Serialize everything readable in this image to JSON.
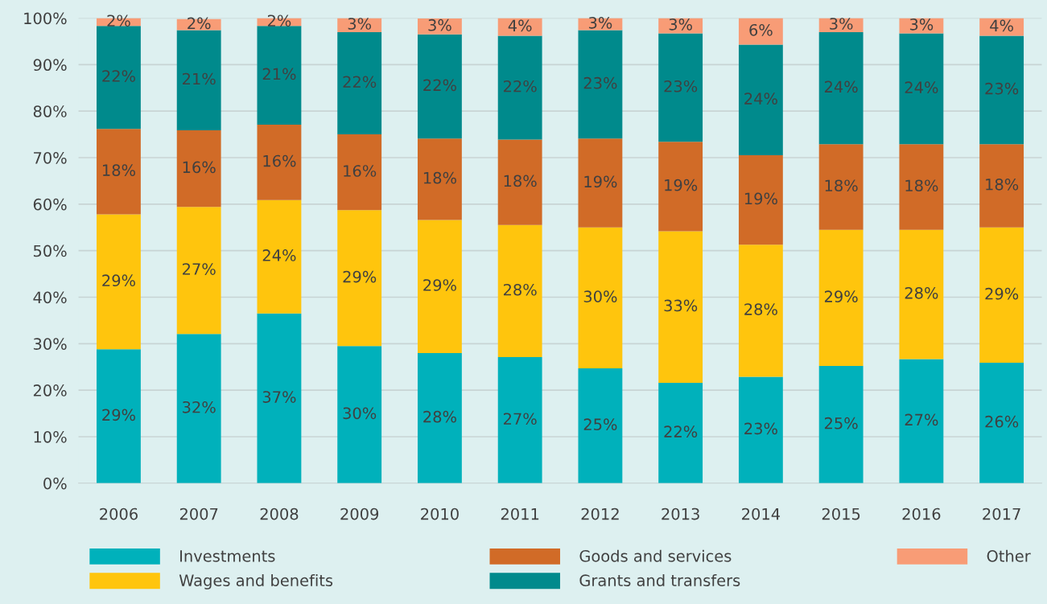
{
  "chart_data": {
    "type": "bar",
    "stacked": true,
    "categories": [
      "2006",
      "2007",
      "2008",
      "2009",
      "2010",
      "2011",
      "2012",
      "2013",
      "2014",
      "2015",
      "2016",
      "2017"
    ],
    "series": [
      {
        "name": "Investments",
        "color": "#00b1bb",
        "values": [
          28.8,
          32.1,
          36.5,
          29.5,
          28.0,
          27.1,
          24.7,
          21.6,
          22.9,
          25.2,
          26.7,
          25.9
        ],
        "value_labels": [
          "29%",
          "32%",
          "37%",
          "30%",
          "28%",
          "27%",
          "25%",
          "22%",
          "23%",
          "25%",
          "27%",
          "26%"
        ]
      },
      {
        "name": "Wages and benefits",
        "color": "#ffc50d",
        "values": [
          29.0,
          27.3,
          24.4,
          29.2,
          28.6,
          28.4,
          30.3,
          32.6,
          28.4,
          29.3,
          27.8,
          29.1
        ],
        "value_labels": [
          "29%",
          "27%",
          "24%",
          "29%",
          "29%",
          "28%",
          "30%",
          "33%",
          "28%",
          "29%",
          "28%",
          "29%"
        ]
      },
      {
        "name": "Goods and services",
        "color": "#d16b27",
        "values": [
          18.4,
          16.5,
          16.2,
          16.3,
          17.5,
          18.4,
          19.1,
          19.2,
          19.2,
          18.4,
          18.4,
          17.9
        ],
        "value_labels": [
          "18%",
          "16%",
          "16%",
          "16%",
          "18%",
          "18%",
          "19%",
          "19%",
          "19%",
          "18%",
          "18%",
          "18%"
        ]
      },
      {
        "name": "Grants and transfers",
        "color": "#008a8c",
        "values": [
          22.1,
          21.5,
          21.2,
          22.0,
          22.4,
          22.3,
          23.3,
          23.3,
          23.8,
          24.1,
          23.8,
          23.3
        ],
        "value_labels": [
          "22%",
          "21%",
          "21%",
          "22%",
          "22%",
          "22%",
          "23%",
          "23%",
          "24%",
          "24%",
          "24%",
          "23%"
        ]
      },
      {
        "name": "Other",
        "color": "#f89c76",
        "values": [
          1.7,
          2.4,
          1.7,
          3.0,
          3.4,
          3.8,
          2.6,
          3.3,
          5.7,
          3.0,
          3.3,
          3.8
        ],
        "value_labels": [
          "2%",
          "2%",
          "2%",
          "3%",
          "3%",
          "4%",
          "3%",
          "3%",
          "6%",
          "3%",
          "3%",
          "4%"
        ]
      }
    ],
    "ylim": [
      0,
      100
    ],
    "yticks": [
      {
        "value": 0,
        "label": "0%"
      },
      {
        "value": 10,
        "label": "10%"
      },
      {
        "value": 20,
        "label": "20%"
      },
      {
        "value": 30,
        "label": "30%"
      },
      {
        "value": 40,
        "label": "40%"
      },
      {
        "value": 50,
        "label": "50%"
      },
      {
        "value": 60,
        "label": "60%"
      },
      {
        "value": 70,
        "label": "70%"
      },
      {
        "value": 80,
        "label": "80%"
      },
      {
        "value": 90,
        "label": "90%"
      },
      {
        "value": 100,
        "label": "100%"
      }
    ],
    "grid": "y",
    "legend": "bottom"
  }
}
